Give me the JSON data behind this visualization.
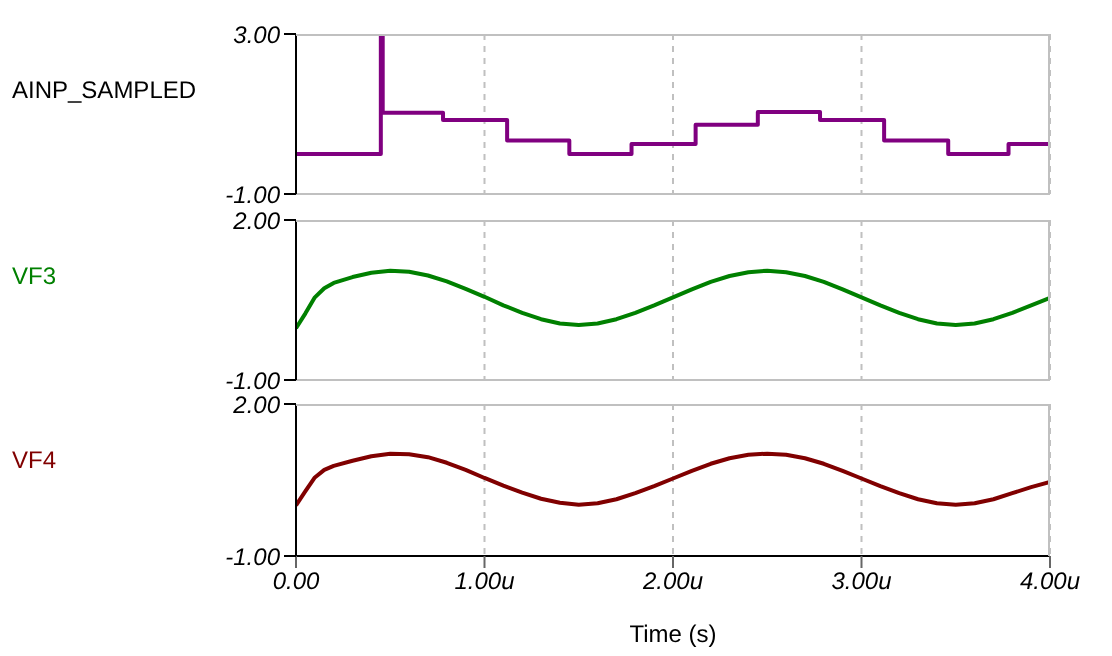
{
  "chart_data": [
    {
      "type": "step",
      "x": [
        0,
        0.45,
        0.46,
        0.78,
        1.12,
        1.45,
        1.78,
        2.12,
        2.45,
        2.78,
        3.12,
        3.46,
        3.78,
        4.0
      ],
      "series": [
        {
          "name": "AINP_SAMPLED",
          "color": "#800080",
          "values": [
            0,
            3,
            1.03,
            0.85,
            0.34,
            0,
            0.25,
            0.73,
            1.05,
            0.85,
            0.34,
            0,
            0.25,
            0.25
          ]
        }
      ],
      "xlim": [
        0,
        4
      ],
      "xticks": [
        {
          "value": 0,
          "label": null
        },
        {
          "value": 1,
          "label": null
        },
        {
          "value": 2,
          "label": null
        },
        {
          "value": 3,
          "label": null
        },
        {
          "value": 4,
          "label": null
        }
      ],
      "ylim": [
        -1,
        3
      ],
      "yticks": [
        {
          "value": -1,
          "label": "-1.00"
        },
        {
          "value": 3,
          "label": "3.00"
        }
      ],
      "grid": "x",
      "legend": false,
      "marker": "none",
      "line_style": "solid",
      "tick_labels": "y"
    },
    {
      "type": "line",
      "x": [
        0,
        0.05,
        0.1,
        0.15,
        0.2,
        0.3,
        0.4,
        0.5,
        0.6,
        0.7,
        0.8,
        0.9,
        1.0,
        1.1,
        1.2,
        1.3,
        1.4,
        1.5,
        1.6,
        1.7,
        1.8,
        1.9,
        2.0,
        2.1,
        2.2,
        2.3,
        2.4,
        2.5,
        2.6,
        2.7,
        2.8,
        2.9,
        3.0,
        3.1,
        3.2,
        3.3,
        3.4,
        3.5,
        3.6,
        3.7,
        3.8,
        3.9,
        4.0
      ],
      "series": [
        {
          "name": "VF3",
          "color": "#008000",
          "values": [
            -0.03,
            0.25,
            0.55,
            0.72,
            0.82,
            0.93,
            1.01,
            1.05,
            1.03,
            0.96,
            0.85,
            0.71,
            0.56,
            0.4,
            0.26,
            0.14,
            0.06,
            0.03,
            0.06,
            0.14,
            0.26,
            0.4,
            0.55,
            0.7,
            0.84,
            0.95,
            1.02,
            1.05,
            1.02,
            0.95,
            0.84,
            0.7,
            0.55,
            0.4,
            0.26,
            0.14,
            0.06,
            0.03,
            0.06,
            0.14,
            0.26,
            0.4,
            0.54
          ]
        }
      ],
      "xlim": [
        0,
        4
      ],
      "xticks": [
        {
          "value": 0,
          "label": null
        },
        {
          "value": 1,
          "label": null
        },
        {
          "value": 2,
          "label": null
        },
        {
          "value": 3,
          "label": null
        },
        {
          "value": 4,
          "label": null
        }
      ],
      "ylim": [
        -1,
        2
      ],
      "yticks": [
        {
          "value": -1,
          "label": "-1.00"
        },
        {
          "value": 2,
          "label": "2.00"
        }
      ],
      "grid": "x",
      "legend": false,
      "marker": "none",
      "line_style": "solid",
      "tick_labels": "y"
    },
    {
      "type": "line",
      "x": [
        0,
        0.05,
        0.1,
        0.15,
        0.2,
        0.3,
        0.4,
        0.5,
        0.6,
        0.7,
        0.8,
        0.9,
        1.0,
        1.1,
        1.2,
        1.3,
        1.4,
        1.5,
        1.6,
        1.7,
        1.8,
        1.9,
        2.0,
        2.1,
        2.2,
        2.3,
        2.4,
        2.5,
        2.6,
        2.7,
        2.8,
        2.9,
        3.0,
        3.1,
        3.2,
        3.3,
        3.4,
        3.5,
        3.6,
        3.7,
        3.8,
        3.9,
        4.0
      ],
      "series": [
        {
          "name": "VF4",
          "color": "#800000",
          "values": [
            0,
            0.28,
            0.55,
            0.7,
            0.78,
            0.88,
            0.97,
            1.02,
            1.01,
            0.95,
            0.84,
            0.7,
            0.54,
            0.39,
            0.25,
            0.13,
            0.05,
            0.01,
            0.04,
            0.12,
            0.24,
            0.38,
            0.53,
            0.68,
            0.82,
            0.93,
            1.0,
            1.02,
            1.0,
            0.93,
            0.82,
            0.68,
            0.53,
            0.38,
            0.24,
            0.12,
            0.04,
            0.01,
            0.04,
            0.12,
            0.24,
            0.36,
            0.46
          ]
        }
      ],
      "xlim": [
        0,
        4
      ],
      "xticks": [
        {
          "value": 0,
          "label": "0.00"
        },
        {
          "value": 1,
          "label": "1.00u"
        },
        {
          "value": 2,
          "label": "2.00u"
        },
        {
          "value": 3,
          "label": "3.00u"
        },
        {
          "value": 4,
          "label": "4.00u"
        }
      ],
      "xlabel": "Time (s)",
      "ylim": [
        -1,
        2
      ],
      "yticks": [
        {
          "value": -1,
          "label": "-1.00"
        },
        {
          "value": 2,
          "label": "2.00"
        }
      ],
      "grid": "x",
      "legend": false,
      "marker": "none",
      "line_style": "solid"
    }
  ]
}
